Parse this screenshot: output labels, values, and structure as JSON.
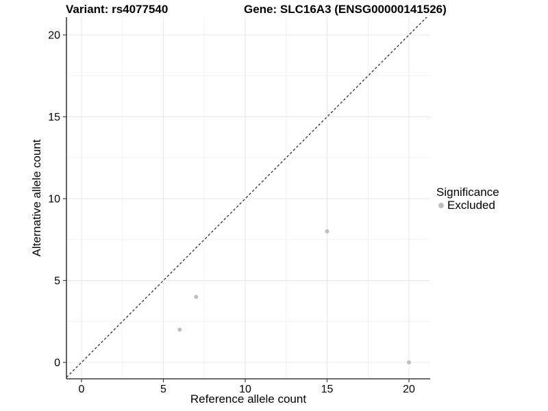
{
  "header": {
    "variant_title": "Variant: rs4077540",
    "gene_title": "Gene: SLC16A3 (ENSG00000141526)"
  },
  "axes": {
    "x_label": "Reference allele count",
    "y_label": "Alternative allele count"
  },
  "legend": {
    "title": "Significance",
    "entries": [
      {
        "label": "Excluded",
        "color": "#bebebe"
      }
    ]
  },
  "chart_data": {
    "type": "scatter",
    "title": "Variant: rs4077540 — Gene: SLC16A3 (ENSG00000141526)",
    "xlabel": "Reference allele count",
    "ylabel": "Alternative allele count",
    "x_ticks": [
      0,
      5,
      10,
      15,
      20
    ],
    "y_ticks": [
      0,
      5,
      10,
      15,
      20
    ],
    "xlim": [
      -1,
      21.3
    ],
    "ylim": [
      -1,
      21.1
    ],
    "grid": "major and minor gridlines, white background",
    "legend_position": "right",
    "series": [
      {
        "name": "Excluded",
        "color": "#bebebe",
        "points": [
          [
            6,
            2
          ],
          [
            7,
            4
          ],
          [
            15,
            8
          ],
          [
            20,
            0
          ]
        ]
      }
    ],
    "reference_line": {
      "type": "identity y=x",
      "style": "dashed",
      "color": "#1a1a1a"
    }
  },
  "colors": {
    "background": "#ffffff",
    "text": "#000000",
    "point": "#bebebe",
    "grid_major": "#e7e7e7",
    "grid_minor": "#f2f2f2",
    "axis": "#3c3c3c",
    "reference_line": "#1a1a1a"
  }
}
